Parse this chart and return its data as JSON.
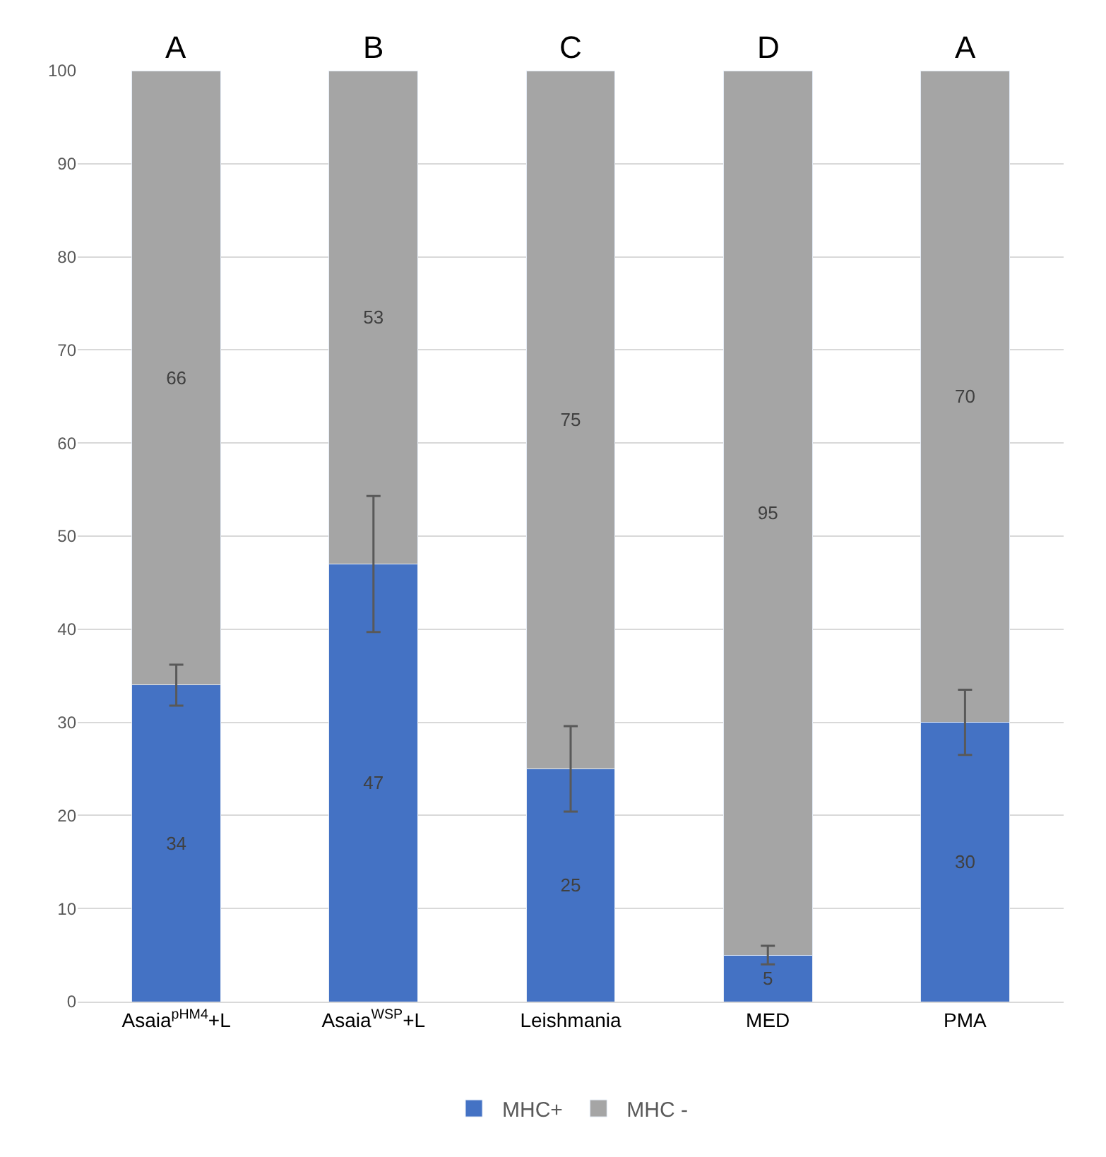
{
  "chart_data": {
    "type": "bar",
    "stacked": true,
    "categories": [
      "Asaia$^{pHM4}$+L",
      "Asaia$^{WSP}$+L",
      "Leishmania",
      "MED",
      "PMA"
    ],
    "series": [
      {
        "name": "MHC+",
        "color": "#4472c4",
        "values": [
          34,
          47,
          25,
          5,
          30
        ],
        "errors": [
          2.2,
          7.3,
          4.6,
          1,
          3.5
        ]
      },
      {
        "name": "MHC -",
        "color": "#a5a5a5",
        "values": [
          66,
          53,
          75,
          95,
          70
        ]
      }
    ],
    "data_labels": true,
    "ylim": [
      0,
      100
    ],
    "yticks": [
      0,
      10,
      20,
      30,
      40,
      50,
      60,
      70,
      80,
      90,
      100
    ],
    "grid": "y",
    "legend": "bottom",
    "annotations": [
      "A",
      "B",
      "C",
      "D",
      "A"
    ]
  }
}
